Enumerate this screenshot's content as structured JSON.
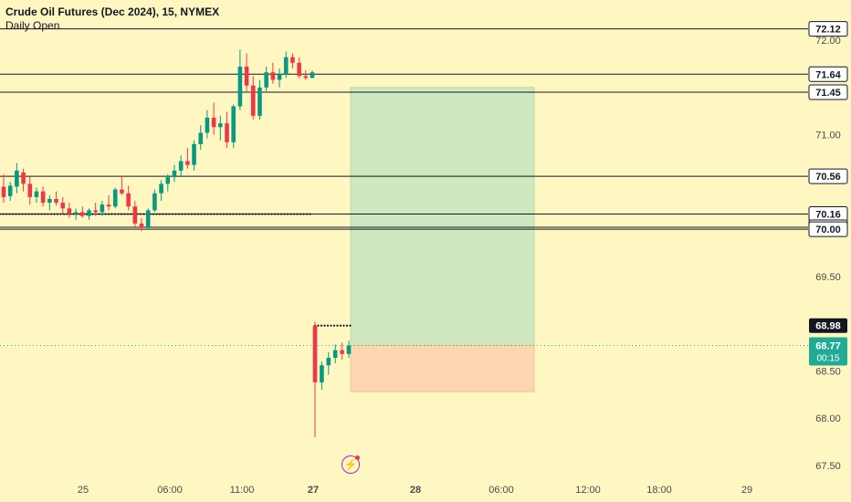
{
  "header": {
    "title": "Crude Oil Futures (Dec 2024), 15, NYMEX",
    "indicator": "Daily Open"
  },
  "chart_data": {
    "type": "candlestick",
    "y_range": [
      67.45,
      72.25
    ],
    "y_ticks": [
      67.5,
      68.0,
      68.5,
      69.5,
      71.0,
      72.0
    ],
    "x_ticks": [
      "25",
      "06:00",
      "11:00",
      "27",
      "28",
      "06:00",
      "12:00",
      "18:00",
      "29"
    ],
    "horizontal_levels": [
      72.12,
      71.64,
      71.45,
      70.56,
      70.16,
      70.02,
      70.0
    ],
    "daily_open_levels": [
      70.16,
      68.98
    ],
    "current_price": 68.77,
    "countdown": "00:15",
    "long_position": {
      "entry": 68.77,
      "target": 71.5,
      "stop": 68.28
    },
    "candles": [
      [
        70.45,
        70.58,
        70.28,
        70.34
      ],
      [
        70.35,
        70.5,
        70.3,
        70.46
      ],
      [
        70.45,
        70.7,
        70.38,
        70.62
      ],
      [
        70.6,
        70.64,
        70.4,
        70.48
      ],
      [
        70.48,
        70.56,
        70.26,
        70.34
      ],
      [
        70.34,
        70.44,
        70.28,
        70.4
      ],
      [
        70.4,
        70.45,
        70.24,
        70.28
      ],
      [
        70.28,
        70.36,
        70.2,
        70.32
      ],
      [
        70.32,
        70.4,
        70.25,
        70.28
      ],
      [
        70.28,
        70.34,
        70.16,
        70.22
      ],
      [
        70.22,
        70.28,
        70.12,
        70.16
      ],
      [
        70.16,
        70.22,
        70.1,
        70.18
      ],
      [
        70.18,
        70.24,
        70.12,
        70.14
      ],
      [
        70.14,
        70.22,
        70.1,
        70.2
      ],
      [
        70.2,
        70.28,
        70.14,
        70.18
      ],
      [
        70.18,
        70.3,
        70.14,
        70.26
      ],
      [
        70.26,
        70.36,
        70.2,
        70.24
      ],
      [
        70.24,
        70.44,
        70.22,
        70.42
      ],
      [
        70.42,
        70.56,
        70.36,
        70.38
      ],
      [
        70.38,
        70.46,
        70.2,
        70.24
      ],
      [
        70.24,
        70.3,
        70.02,
        70.06
      ],
      [
        70.06,
        70.12,
        69.98,
        70.02
      ],
      [
        70.02,
        70.22,
        70.0,
        70.2
      ],
      [
        70.2,
        70.42,
        70.18,
        70.38
      ],
      [
        70.38,
        70.52,
        70.3,
        70.48
      ],
      [
        70.48,
        70.58,
        70.4,
        70.55
      ],
      [
        70.55,
        70.68,
        70.5,
        70.62
      ],
      [
        70.62,
        70.78,
        70.56,
        70.72
      ],
      [
        70.72,
        70.86,
        70.64,
        70.68
      ],
      [
        70.68,
        70.94,
        70.62,
        70.9
      ],
      [
        70.9,
        71.1,
        70.84,
        71.02
      ],
      [
        71.02,
        71.26,
        70.96,
        71.18
      ],
      [
        71.18,
        71.34,
        71.0,
        71.08
      ],
      [
        71.08,
        71.2,
        70.94,
        71.12
      ],
      [
        71.12,
        71.24,
        70.86,
        70.92
      ],
      [
        70.92,
        71.32,
        70.86,
        71.3
      ],
      [
        71.3,
        71.9,
        71.26,
        71.72
      ],
      [
        71.72,
        71.86,
        71.46,
        71.52
      ],
      [
        71.52,
        71.62,
        71.16,
        71.2
      ],
      [
        71.2,
        71.58,
        71.16,
        71.5
      ],
      [
        71.5,
        71.72,
        71.46,
        71.66
      ],
      [
        71.66,
        71.76,
        71.54,
        71.58
      ],
      [
        71.58,
        71.7,
        71.5,
        71.64
      ],
      [
        71.64,
        71.88,
        71.6,
        71.82
      ],
      [
        71.82,
        71.86,
        71.7,
        71.76
      ],
      [
        71.76,
        71.82,
        71.6,
        71.62
      ],
      [
        71.62,
        71.68,
        71.58,
        71.6
      ],
      [
        71.6,
        71.68,
        71.6,
        71.66
      ],
      [
        68.98,
        69.02,
        67.8,
        68.38
      ],
      [
        68.38,
        68.6,
        68.3,
        68.56
      ],
      [
        68.56,
        68.7,
        68.46,
        68.64
      ],
      [
        68.64,
        68.78,
        68.58,
        68.72
      ],
      [
        68.72,
        68.8,
        68.62,
        68.68
      ],
      [
        68.68,
        68.82,
        68.64,
        68.77
      ]
    ]
  }
}
